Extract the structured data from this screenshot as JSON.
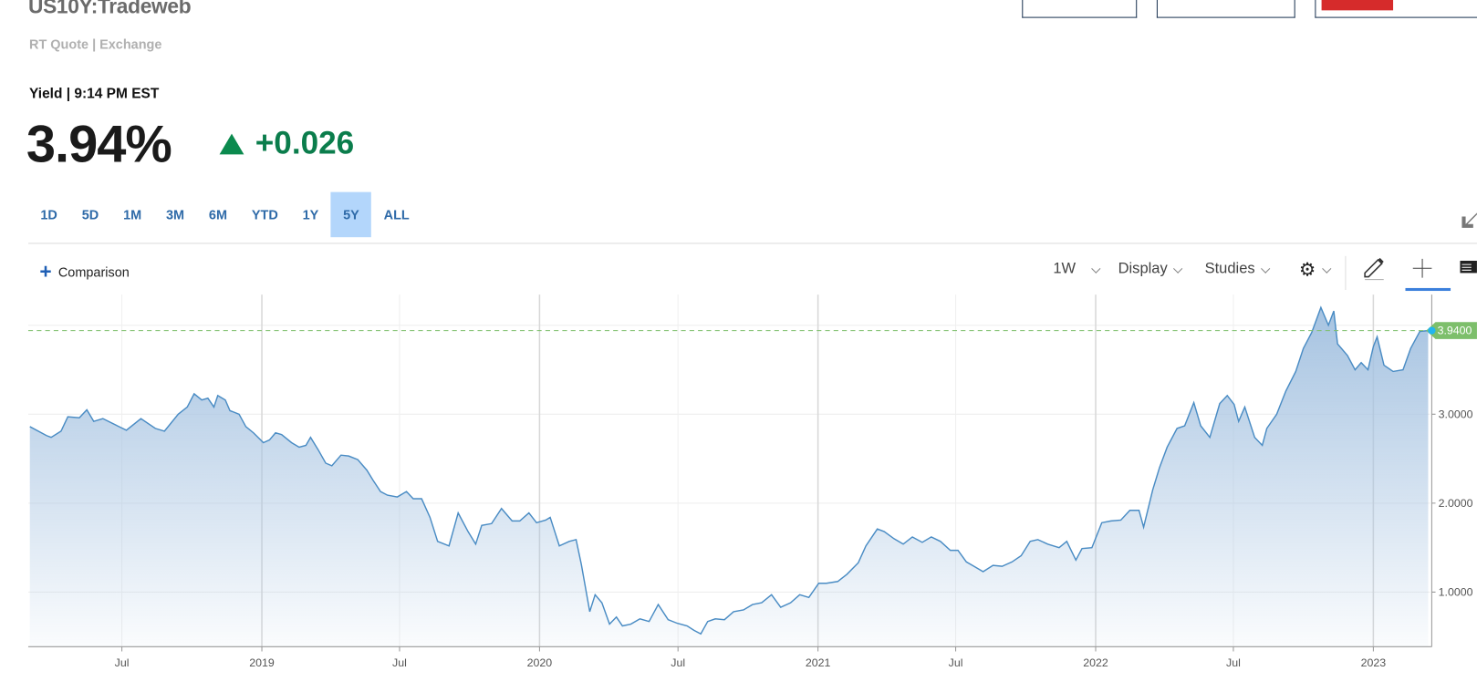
{
  "header": {
    "symbol": "US10Y:Tradeweb",
    "quote_source": "RT Quote | Exchange",
    "yield_time": "Yield | 9:14 PM EST",
    "last": "3.94%",
    "change": "+0.026",
    "change_direction": "up",
    "up_color": "#0b7d4c"
  },
  "ranges": [
    {
      "label": "1D"
    },
    {
      "label": "5D"
    },
    {
      "label": "1M"
    },
    {
      "label": "3M"
    },
    {
      "label": "6M"
    },
    {
      "label": "YTD"
    },
    {
      "label": "1Y"
    },
    {
      "label": "5Y",
      "selected": true
    },
    {
      "label": "ALL"
    }
  ],
  "toolbar": {
    "comparison": "Comparison",
    "interval": "1W",
    "display": "Display",
    "studies": "Studies",
    "icons": [
      "gear-icon",
      "pencil-icon",
      "crosshair-icon",
      "news-icon",
      "collapse-arrow-icon"
    ]
  },
  "chart_data": {
    "type": "area",
    "line_color": "#4a8cc4",
    "fill_color": "#a9c6e3",
    "last_value_label": "3.9400",
    "last_value_color": "#7dbf6b",
    "x_ticks": [
      "Jul",
      "2019",
      "Jul",
      "2020",
      "Jul",
      "2021",
      "Jul",
      "2022",
      "Jul",
      "2023"
    ],
    "y_ticks": [
      "1.0000",
      "2.0000",
      "3.0000"
    ],
    "ylim": [
      0.4,
      4.35
    ],
    "grid": true,
    "points": [
      [
        "2018-03-02",
        2.86
      ],
      [
        "2018-03-24",
        2.76
      ],
      [
        "2018-03-30",
        2.74
      ],
      [
        "2018-04-12",
        2.81
      ],
      [
        "2018-04-21",
        2.97
      ],
      [
        "2018-05-06",
        2.96
      ],
      [
        "2018-05-16",
        3.05
      ],
      [
        "2018-05-25",
        2.92
      ],
      [
        "2018-06-06",
        2.95
      ],
      [
        "2018-06-25",
        2.87
      ],
      [
        "2018-07-07",
        2.82
      ],
      [
        "2018-07-26",
        2.95
      ],
      [
        "2018-08-14",
        2.84
      ],
      [
        "2018-08-26",
        2.81
      ],
      [
        "2018-09-13",
        3.0
      ],
      [
        "2018-09-25",
        3.08
      ],
      [
        "2018-10-04",
        3.23
      ],
      [
        "2018-10-14",
        3.16
      ],
      [
        "2018-10-22",
        3.18
      ],
      [
        "2018-10-30",
        3.08
      ],
      [
        "2018-11-04",
        3.21
      ],
      [
        "2018-11-14",
        3.16
      ],
      [
        "2018-11-20",
        3.04
      ],
      [
        "2018-12-02",
        3.0
      ],
      [
        "2018-12-11",
        2.86
      ],
      [
        "2018-12-21",
        2.79
      ],
      [
        "2019-01-03",
        2.68
      ],
      [
        "2019-01-11",
        2.71
      ],
      [
        "2019-01-19",
        2.79
      ],
      [
        "2019-01-27",
        2.77
      ],
      [
        "2019-02-09",
        2.68
      ],
      [
        "2019-02-19",
        2.63
      ],
      [
        "2019-02-28",
        2.65
      ],
      [
        "2019-03-06",
        2.74
      ],
      [
        "2019-03-16",
        2.6
      ],
      [
        "2019-03-26",
        2.45
      ],
      [
        "2019-04-03",
        2.42
      ],
      [
        "2019-04-15",
        2.54
      ],
      [
        "2019-04-25",
        2.53
      ],
      [
        "2019-05-07",
        2.49
      ],
      [
        "2019-05-19",
        2.37
      ],
      [
        "2019-05-27",
        2.26
      ],
      [
        "2019-06-06",
        2.13
      ],
      [
        "2019-06-15",
        2.09
      ],
      [
        "2019-06-28",
        2.07
      ],
      [
        "2019-07-10",
        2.13
      ],
      [
        "2019-07-19",
        2.05
      ],
      [
        "2019-07-30",
        2.05
      ],
      [
        "2019-08-10",
        1.84
      ],
      [
        "2019-08-20",
        1.57
      ],
      [
        "2019-09-04",
        1.52
      ],
      [
        "2019-09-16",
        1.89
      ],
      [
        "2019-09-29",
        1.68
      ],
      [
        "2019-10-09",
        1.54
      ],
      [
        "2019-10-17",
        1.75
      ],
      [
        "2019-10-30",
        1.77
      ],
      [
        "2019-11-12",
        1.94
      ],
      [
        "2019-11-26",
        1.8
      ],
      [
        "2019-12-06",
        1.8
      ],
      [
        "2019-12-18",
        1.89
      ],
      [
        "2019-12-28",
        1.78
      ],
      [
        "2020-01-09",
        1.81
      ],
      [
        "2020-01-15",
        1.84
      ],
      [
        "2020-01-27",
        1.52
      ],
      [
        "2020-02-09",
        1.57
      ],
      [
        "2020-02-18",
        1.59
      ],
      [
        "2020-02-25",
        1.31
      ],
      [
        "2020-03-07",
        0.78
      ],
      [
        "2020-03-14",
        0.97
      ],
      [
        "2020-03-23",
        0.88
      ],
      [
        "2020-04-02",
        0.64
      ],
      [
        "2020-04-11",
        0.72
      ],
      [
        "2020-04-19",
        0.62
      ],
      [
        "2020-04-30",
        0.64
      ],
      [
        "2020-05-12",
        0.7
      ],
      [
        "2020-05-24",
        0.67
      ],
      [
        "2020-06-05",
        0.86
      ],
      [
        "2020-06-18",
        0.69
      ],
      [
        "2020-06-30",
        0.65
      ],
      [
        "2020-07-13",
        0.62
      ],
      [
        "2020-07-22",
        0.57
      ],
      [
        "2020-07-31",
        0.53
      ],
      [
        "2020-08-09",
        0.67
      ],
      [
        "2020-08-19",
        0.7
      ],
      [
        "2020-08-31",
        0.69
      ],
      [
        "2020-09-12",
        0.78
      ],
      [
        "2020-09-25",
        0.8
      ],
      [
        "2020-10-07",
        0.86
      ],
      [
        "2020-10-19",
        0.88
      ],
      [
        "2020-11-01",
        0.97
      ],
      [
        "2020-11-13",
        0.83
      ],
      [
        "2020-11-26",
        0.88
      ],
      [
        "2020-12-08",
        0.97
      ],
      [
        "2020-12-20",
        0.94
      ],
      [
        "2021-01-02",
        1.1
      ],
      [
        "2021-01-12",
        1.1
      ],
      [
        "2021-01-27",
        1.12
      ],
      [
        "2021-02-08",
        1.2
      ],
      [
        "2021-02-23",
        1.33
      ],
      [
        "2021-03-05",
        1.52
      ],
      [
        "2021-03-20",
        1.71
      ],
      [
        "2021-03-29",
        1.68
      ],
      [
        "2021-04-11",
        1.6
      ],
      [
        "2021-04-23",
        1.54
      ],
      [
        "2021-05-05",
        1.62
      ],
      [
        "2021-05-18",
        1.56
      ],
      [
        "2021-05-30",
        1.62
      ],
      [
        "2021-06-11",
        1.57
      ],
      [
        "2021-06-24",
        1.47
      ],
      [
        "2021-07-04",
        1.47
      ],
      [
        "2021-07-15",
        1.34
      ],
      [
        "2021-07-25",
        1.29
      ],
      [
        "2021-08-06",
        1.23
      ],
      [
        "2021-08-19",
        1.3
      ],
      [
        "2021-08-31",
        1.29
      ],
      [
        "2021-09-13",
        1.34
      ],
      [
        "2021-09-25",
        1.41
      ],
      [
        "2021-10-07",
        1.57
      ],
      [
        "2021-10-17",
        1.59
      ],
      [
        "2021-10-30",
        1.54
      ],
      [
        "2021-11-14",
        1.5
      ],
      [
        "2021-11-24",
        1.57
      ],
      [
        "2021-12-06",
        1.36
      ],
      [
        "2021-12-14",
        1.49
      ],
      [
        "2021-12-27",
        1.5
      ],
      [
        "2022-01-09",
        1.78
      ],
      [
        "2022-01-21",
        1.8
      ],
      [
        "2022-02-03",
        1.81
      ],
      [
        "2022-02-15",
        1.92
      ],
      [
        "2022-02-27",
        1.92
      ],
      [
        "2022-03-05",
        1.73
      ],
      [
        "2022-03-17",
        2.15
      ],
      [
        "2022-03-26",
        2.4
      ],
      [
        "2022-04-05",
        2.63
      ],
      [
        "2022-04-18",
        2.84
      ],
      [
        "2022-04-28",
        2.87
      ],
      [
        "2022-05-10",
        3.13
      ],
      [
        "2022-05-19",
        2.87
      ],
      [
        "2022-05-31",
        2.74
      ],
      [
        "2022-06-13",
        3.12
      ],
      [
        "2022-06-23",
        3.21
      ],
      [
        "2022-07-02",
        3.11
      ],
      [
        "2022-07-08",
        2.92
      ],
      [
        "2022-07-16",
        3.08
      ],
      [
        "2022-07-29",
        2.74
      ],
      [
        "2022-08-08",
        2.65
      ],
      [
        "2022-08-14",
        2.84
      ],
      [
        "2022-08-27",
        3.0
      ],
      [
        "2022-09-08",
        3.26
      ],
      [
        "2022-09-21",
        3.48
      ],
      [
        "2022-10-01",
        3.74
      ],
      [
        "2022-10-12",
        3.92
      ],
      [
        "2022-10-24",
        4.2
      ],
      [
        "2022-11-03",
        4.0
      ],
      [
        "2022-11-10",
        4.16
      ],
      [
        "2022-11-15",
        3.79
      ],
      [
        "2022-11-28",
        3.66
      ],
      [
        "2022-12-08",
        3.5
      ],
      [
        "2022-12-16",
        3.58
      ],
      [
        "2022-12-25",
        3.5
      ],
      [
        "2023-01-01",
        3.76
      ],
      [
        "2023-01-06",
        3.87
      ],
      [
        "2023-01-15",
        3.55
      ],
      [
        "2023-01-27",
        3.48
      ],
      [
        "2023-02-09",
        3.5
      ],
      [
        "2023-02-19",
        3.74
      ],
      [
        "2023-03-03",
        3.93
      ],
      [
        "2023-03-14",
        3.94
      ]
    ]
  }
}
